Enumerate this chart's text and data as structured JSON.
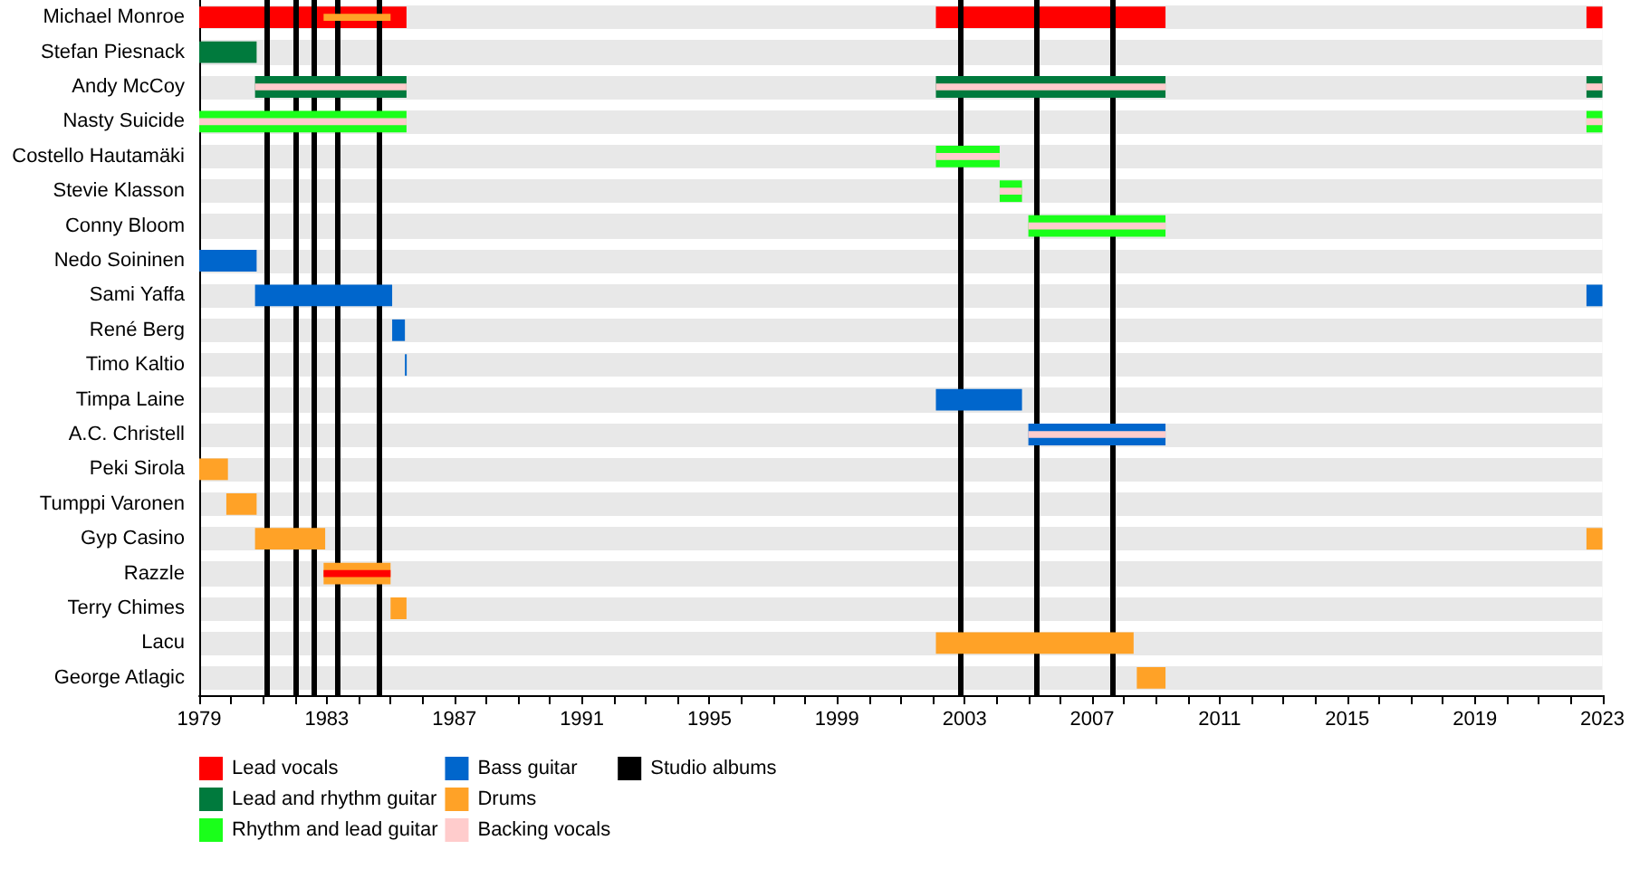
{
  "chart_data": {
    "type": "bar",
    "orientation": "horizontal",
    "categories": [
      "Michael Monroe",
      "Stefan Piesnack",
      "Andy McCoy",
      "Nasty Suicide",
      "Costello Hautamäki",
      "Stevie Klasson",
      "Conny Bloom",
      "Nedo Soininen",
      "Sami Yaffa",
      "René Berg",
      "Timo Kaltio",
      "Timpa Laine",
      "A.C. Christell",
      "Peki Sirola",
      "Tumppi Varonen",
      "Gyp Casino",
      "Razzle",
      "Terry Chimes",
      "Lacu",
      "George Atlagic"
    ],
    "xlim": [
      1979,
      2023
    ],
    "xticks": [
      1979,
      {
        "value": 1980,
        "label": null
      },
      {
        "value": 1981,
        "label": null
      },
      {
        "value": 1982,
        "label": null
      },
      1983,
      {
        "value": 1984,
        "label": null
      },
      {
        "value": 1985,
        "label": null
      },
      {
        "value": 1986,
        "label": null
      },
      1987,
      {
        "value": 1988,
        "label": null
      },
      {
        "value": 1989,
        "label": null
      },
      {
        "value": 1990,
        "label": null
      },
      1991,
      {
        "value": 1992,
        "label": null
      },
      {
        "value": 1993,
        "label": null
      },
      {
        "value": 1994,
        "label": null
      },
      1995,
      {
        "value": 1996,
        "label": null
      },
      {
        "value": 1997,
        "label": null
      },
      {
        "value": 1998,
        "label": null
      },
      1999,
      {
        "value": 2000,
        "label": null
      },
      {
        "value": 2001,
        "label": null
      },
      {
        "value": 2002,
        "label": null
      },
      2003,
      {
        "value": 2004,
        "label": null
      },
      {
        "value": 2005,
        "label": null
      },
      {
        "value": 2006,
        "label": null
      },
      2007,
      {
        "value": 2008,
        "label": null
      },
      {
        "value": 2009,
        "label": null
      },
      {
        "value": 2010,
        "label": null
      },
      2011,
      {
        "value": 2012,
        "label": null
      },
      {
        "value": 2013,
        "label": null
      },
      {
        "value": 2014,
        "label": null
      },
      2015,
      {
        "value": 2016,
        "label": null
      },
      {
        "value": 2017,
        "label": null
      },
      {
        "value": 2018,
        "label": null
      },
      2019,
      {
        "value": 2020,
        "label": null
      },
      {
        "value": 2021,
        "label": null
      },
      {
        "value": 2022,
        "label": null
      },
      2023
    ],
    "legend": "bottom",
    "series": [
      {
        "name": "Lead vocals",
        "color": "#ff0000",
        "base": [
          1979,
          null,
          null,
          null,
          null,
          null,
          null,
          null,
          null,
          null,
          null,
          null,
          null,
          null,
          null,
          null,
          null,
          null,
          null,
          null
        ],
        "values": [
          6.5,
          null,
          null,
          null,
          null,
          null,
          null,
          null,
          null,
          null,
          null,
          null,
          null,
          null,
          null,
          null,
          null,
          null,
          null,
          null
        ]
      },
      {
        "color": "#ff0000",
        "base": [
          2002.1,
          null,
          null,
          null,
          null,
          null,
          null,
          null,
          null,
          null,
          null,
          null,
          null,
          null,
          null,
          null,
          null,
          null,
          null,
          null
        ],
        "values": [
          7.2,
          null,
          null,
          null,
          null,
          null,
          null,
          null,
          null,
          null,
          null,
          null,
          null,
          null,
          null,
          null,
          null,
          null,
          null,
          null
        ]
      },
      {
        "color": "#ff0000",
        "base": [
          2022.5,
          null,
          null,
          null,
          null,
          null,
          null,
          null,
          null,
          null,
          null,
          null,
          null,
          null,
          null,
          null,
          null,
          null,
          null,
          null
        ],
        "values": [
          0.5,
          null,
          null,
          null,
          null,
          null,
          null,
          null,
          null,
          null,
          null,
          null,
          null,
          null,
          null,
          null,
          null,
          null,
          null,
          null
        ]
      },
      {
        "name": "Lead and rhythm guitar",
        "color": "#007a3d",
        "base": [
          null,
          1979,
          1980.75,
          null,
          null,
          null,
          null,
          null,
          null,
          null,
          null,
          null,
          null,
          null,
          null,
          null,
          null,
          null,
          null,
          null
        ],
        "values": [
          null,
          1.8,
          4.75,
          null,
          null,
          null,
          null,
          null,
          null,
          null,
          null,
          null,
          null,
          null,
          null,
          null,
          null,
          null,
          null,
          null
        ]
      },
      {
        "color": "#007a3d",
        "base": [
          null,
          null,
          2002.1,
          null,
          null,
          null,
          null,
          null,
          null,
          null,
          null,
          null,
          null,
          null,
          null,
          null,
          null,
          null,
          null,
          null
        ],
        "values": [
          null,
          null,
          7.2,
          null,
          null,
          null,
          null,
          null,
          null,
          null,
          null,
          null,
          null,
          null,
          null,
          null,
          null,
          null,
          null,
          null
        ]
      },
      {
        "color": "#007a3d",
        "base": [
          null,
          null,
          2022.5,
          null,
          null,
          null,
          null,
          null,
          null,
          null,
          null,
          null,
          null,
          null,
          null,
          null,
          null,
          null,
          null,
          null
        ],
        "values": [
          null,
          null,
          0.5,
          null,
          null,
          null,
          null,
          null,
          null,
          null,
          null,
          null,
          null,
          null,
          null,
          null,
          null,
          null,
          null,
          null
        ]
      },
      {
        "name": "Rhythm and lead guitar",
        "color": "#1aff1a",
        "base": [
          null,
          null,
          null,
          1979,
          2002.1,
          2004.1,
          2005.0,
          null,
          null,
          null,
          null,
          null,
          null,
          null,
          null,
          null,
          null,
          null,
          null,
          null
        ],
        "values": [
          null,
          null,
          null,
          6.5,
          2.0,
          0.7,
          4.3,
          null,
          null,
          null,
          null,
          null,
          null,
          null,
          null,
          null,
          null,
          null,
          null,
          null
        ]
      },
      {
        "color": "#1aff1a",
        "base": [
          null,
          null,
          null,
          2022.5,
          null,
          null,
          null,
          null,
          null,
          null,
          null,
          null,
          null,
          null,
          null,
          null,
          null,
          null,
          null,
          null
        ],
        "values": [
          null,
          null,
          null,
          0.5,
          null,
          null,
          null,
          null,
          null,
          null,
          null,
          null,
          null,
          null,
          null,
          null,
          null,
          null,
          null,
          null
        ]
      },
      {
        "name": "Bass guitar",
        "color": "#0066cc",
        "base": [
          null,
          null,
          null,
          null,
          null,
          null,
          null,
          1979,
          1980.75,
          1985.05,
          1985.45,
          2002.1,
          2005.0,
          null,
          null,
          null,
          null,
          null,
          null,
          null
        ],
        "values": [
          null,
          null,
          null,
          null,
          null,
          null,
          null,
          1.8,
          4.3,
          0.4,
          0.05,
          2.7,
          4.3,
          null,
          null,
          null,
          null,
          null,
          null,
          null
        ]
      },
      {
        "color": "#0066cc",
        "base": [
          null,
          null,
          null,
          null,
          null,
          null,
          null,
          null,
          2022.5,
          null,
          null,
          null,
          null,
          null,
          null,
          null,
          null,
          null,
          null,
          null
        ],
        "values": [
          null,
          null,
          null,
          null,
          null,
          null,
          null,
          null,
          0.5,
          null,
          null,
          null,
          null,
          null,
          null,
          null,
          null,
          null,
          null,
          null
        ]
      },
      {
        "name": "Drums",
        "color": "#ffa227",
        "base": [
          1982.9,
          null,
          null,
          null,
          null,
          null,
          null,
          null,
          null,
          null,
          null,
          null,
          null,
          1979,
          1979.85,
          1980.75,
          1982.9,
          1985.0,
          2002.1,
          2008.4
        ],
        "values": [
          2.1,
          null,
          null,
          null,
          null,
          null,
          null,
          null,
          null,
          null,
          null,
          null,
          null,
          0.9,
          0.95,
          2.2,
          2.1,
          0.5,
          6.2,
          0.9
        ]
      },
      {
        "color": "#ffa227",
        "base": [
          null,
          null,
          null,
          null,
          null,
          null,
          null,
          null,
          null,
          null,
          null,
          null,
          null,
          null,
          null,
          2022.5,
          null,
          null,
          null,
          null
        ],
        "values": [
          null,
          null,
          null,
          null,
          null,
          null,
          null,
          null,
          null,
          null,
          null,
          null,
          null,
          null,
          null,
          0.5,
          null,
          null,
          null,
          null
        ]
      },
      {
        "name": "Backing vocals",
        "color": "#ffcccc",
        "base": [
          null,
          null,
          1980.75,
          1979,
          2002.1,
          2004.1,
          2005.0,
          null,
          null,
          null,
          null,
          null,
          2005.0,
          null,
          null,
          null,
          null,
          null,
          null,
          null
        ],
        "values": [
          null,
          null,
          4.75,
          6.5,
          2.0,
          0.7,
          4.3,
          null,
          null,
          null,
          null,
          null,
          4.3,
          null,
          null,
          null,
          null,
          null,
          null,
          null
        ]
      },
      {
        "color": "#ffcccc",
        "base": [
          null,
          null,
          2002.1,
          2022.5,
          null,
          null,
          null,
          null,
          null,
          null,
          null,
          null,
          null,
          null,
          null,
          null,
          null,
          null,
          null,
          null
        ],
        "values": [
          null,
          null,
          7.2,
          0.5,
          null,
          null,
          null,
          null,
          null,
          null,
          null,
          null,
          null,
          null,
          null,
          null,
          null,
          null,
          null,
          null
        ]
      },
      {
        "color": "#ffcccc",
        "base": [
          null,
          null,
          2022.5,
          null,
          null,
          null,
          null,
          null,
          null,
          null,
          null,
          null,
          null,
          null,
          null,
          null,
          null,
          null,
          null,
          null
        ],
        "values": [
          null,
          null,
          0.5,
          null,
          null,
          null,
          null,
          null,
          null,
          null,
          null,
          null,
          null,
          null,
          null,
          null,
          null,
          null,
          null,
          null
        ]
      },
      {
        "color": "#ff0000",
        "base": [
          null,
          null,
          null,
          null,
          null,
          null,
          null,
          null,
          null,
          null,
          null,
          null,
          null,
          null,
          null,
          null,
          1982.9,
          null,
          null,
          null
        ],
        "values": [
          null,
          null,
          null,
          null,
          null,
          null,
          null,
          null,
          null,
          null,
          null,
          null,
          null,
          null,
          null,
          null,
          2.1,
          null,
          null,
          null
        ]
      }
    ],
    "ref_lines": [
      {
        "axis": "x",
        "value": 1981.1,
        "label": "Studio albums",
        "color": "#000000"
      },
      {
        "axis": "x",
        "value": 1982.05,
        "color": "#000000"
      },
      {
        "axis": "x",
        "value": 1982.6,
        "color": "#000000"
      },
      {
        "axis": "x",
        "value": 1983.35,
        "color": "#000000"
      },
      {
        "axis": "x",
        "value": 1984.65,
        "color": "#000000"
      },
      {
        "axis": "x",
        "value": 2002.85,
        "color": "#000000"
      },
      {
        "axis": "x",
        "value": 2005.25,
        "color": "#000000"
      },
      {
        "axis": "x",
        "value": 2007.65,
        "color": "#000000"
      }
    ]
  }
}
